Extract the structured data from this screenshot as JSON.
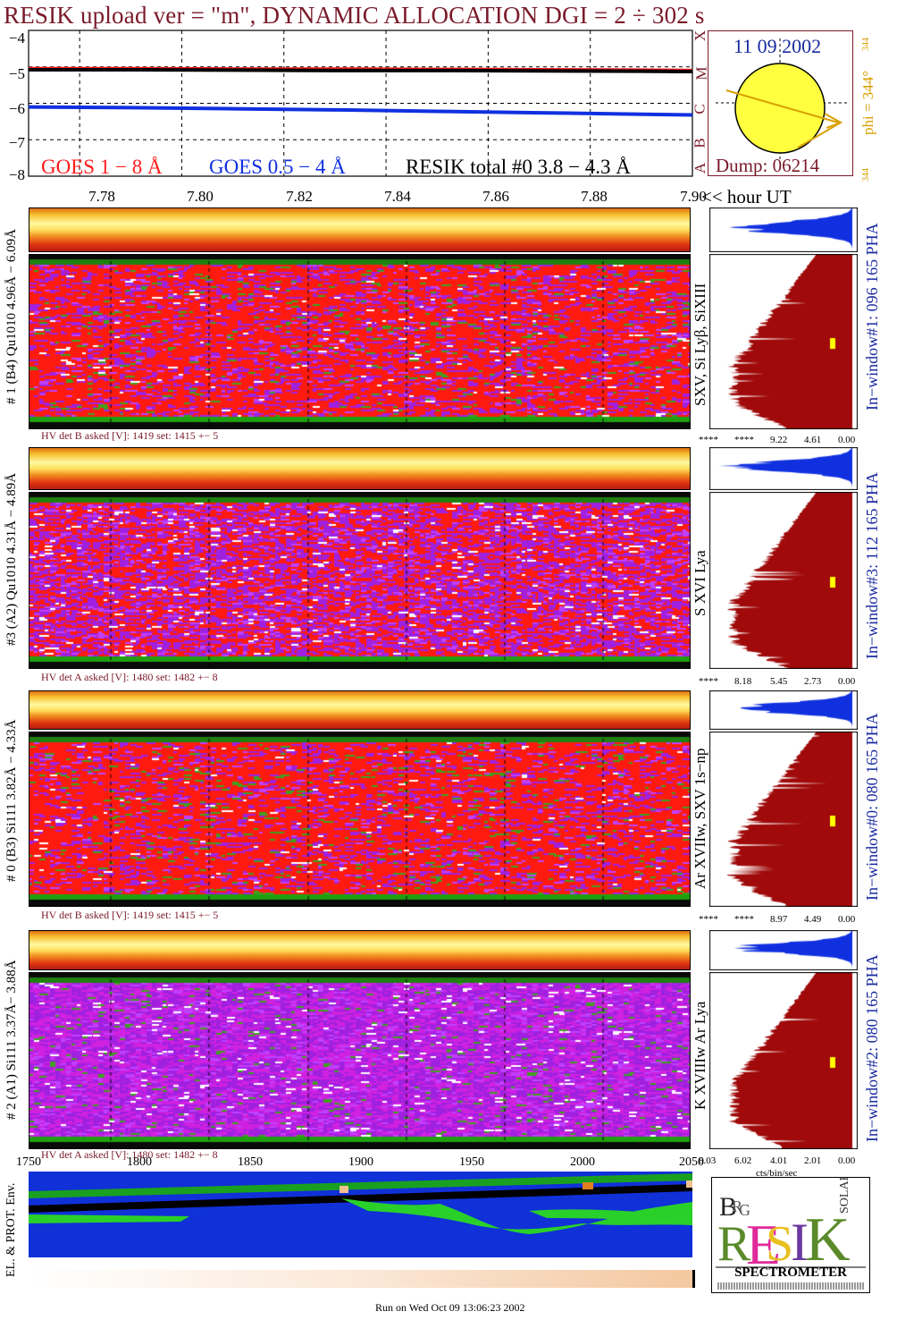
{
  "title": "RESIK upload ver = \"m\", DYNAMIC ALLOCATION  DGI =   2 ÷ 302 s",
  "goes": {
    "legend": {
      "goes18": "GOES 1 − 8 Å",
      "goes054": "GOES 0.5 − 4 Å",
      "resik": "RESIK total #0  3.8 − 4.3 Å"
    },
    "y_ticks": [
      "−4",
      "−5",
      "−6",
      "−7",
      "−8"
    ],
    "class_letters": [
      "X",
      "M",
      "C",
      "B",
      "A"
    ],
    "colors": {
      "goes18": "#ff1a1a",
      "goes054": "#1030e0",
      "resik": "#000000"
    }
  },
  "hour_axis": {
    "ticks": [
      "7.78",
      "7.80",
      "7.82",
      "7.84",
      "7.86",
      "7.88",
      "7.90"
    ],
    "unit": "<< hour UT"
  },
  "sun": {
    "date": "11 09 2002",
    "phi": "phi = 344°",
    "phi_small_top": "344",
    "phi_small_bottom": "344",
    "dump": "Dump: 06214"
  },
  "detectors": [
    {
      "label": "# 1 (B4) Qu1010 4.96Å − 6.09Å",
      "lines": "SXV, Si Lyβ, SiXIII",
      "window": "In−window#1:  096 165 PHA",
      "hv": "HV det B asked [V]:  1419 set:  1415 +−   5",
      "pha_ticks": [
        "****",
        "****",
        "9.22",
        "4.61",
        "0.00"
      ]
    },
    {
      "label": "#3 (A2) Qu1010  4.31Å − 4.89Å",
      "lines": "S XVI Lya",
      "window": "In−window#3:  112 165 PHA",
      "hv": "HV det A asked [V]:  1480 set:  1482 +−   8",
      "pha_ticks": [
        "****",
        "8.18",
        "5.45",
        "2.73",
        "0.00"
      ]
    },
    {
      "label": "# 0 (B3) Si111  3.82Å − 4.33Å",
      "lines": "Ar XVIIw,  SXV 1s−np",
      "window": "In−window#0:  080 165 PHA",
      "hv": "HV det B asked [V]:  1419 set:  1415 +−   5",
      "pha_ticks": [
        "****",
        "****",
        "8.97",
        "4.49",
        "0.00"
      ]
    },
    {
      "label": "# 2 (A1) Si111  3.37Å−  3.88Å",
      "lines": "K XVIIIw  Ar Lya",
      "window": "In−window#2:  080 165 PHA",
      "hv": "HV det A asked [V]:  1480 set:  1482 +−   8",
      "pha_ticks": [
        "8.03",
        "6.02",
        "4.01",
        "2.01",
        "0.00"
      ]
    }
  ],
  "channel_axis": {
    "ticks": [
      "1750",
      "1800",
      "1850",
      "1900",
      "1950",
      "2000",
      "2050"
    ]
  },
  "pha_unit": "cts/bin/sec",
  "env_label": "EL. & PROT. Env.",
  "logo": {
    "letters": [
      "B",
      "R",
      "E",
      "S",
      "I",
      "K",
      "S",
      "O",
      "L",
      "A",
      "R"
    ],
    "caption": "SPECTROMETER"
  },
  "footer": "Run on Wed Oct 09 13:06:23 2002",
  "chart_data": {
    "type": "line",
    "title": "RESIK upload ver = \"m\", DYNAMIC ALLOCATION  DGI =   2 ÷ 302 s",
    "xlabel": "<< hour UT",
    "ylabel": "",
    "x": [
      7.77,
      7.79,
      7.81,
      7.83,
      7.85,
      7.87,
      7.89,
      7.9
    ],
    "xlim": [
      7.77,
      7.9
    ],
    "ylim": [
      -8,
      -4
    ],
    "series": [
      {
        "name": "GOES 1 − 8 Å",
        "values": [
          -5.05,
          -5.05,
          -5.06,
          -5.06,
          -5.07,
          -5.08,
          -5.09,
          -5.1
        ]
      },
      {
        "name": "GOES 0.5 − 4 Å",
        "values": [
          -6.1,
          -6.12,
          -6.15,
          -6.18,
          -6.22,
          -6.26,
          -6.3,
          -6.32
        ]
      },
      {
        "name": "RESIK total #0  3.8 − 4.3 Å",
        "values": [
          -5.08,
          -5.08,
          -5.09,
          -5.1,
          -5.1,
          -5.11,
          -5.12,
          -5.13
        ]
      }
    ],
    "grid": true
  }
}
